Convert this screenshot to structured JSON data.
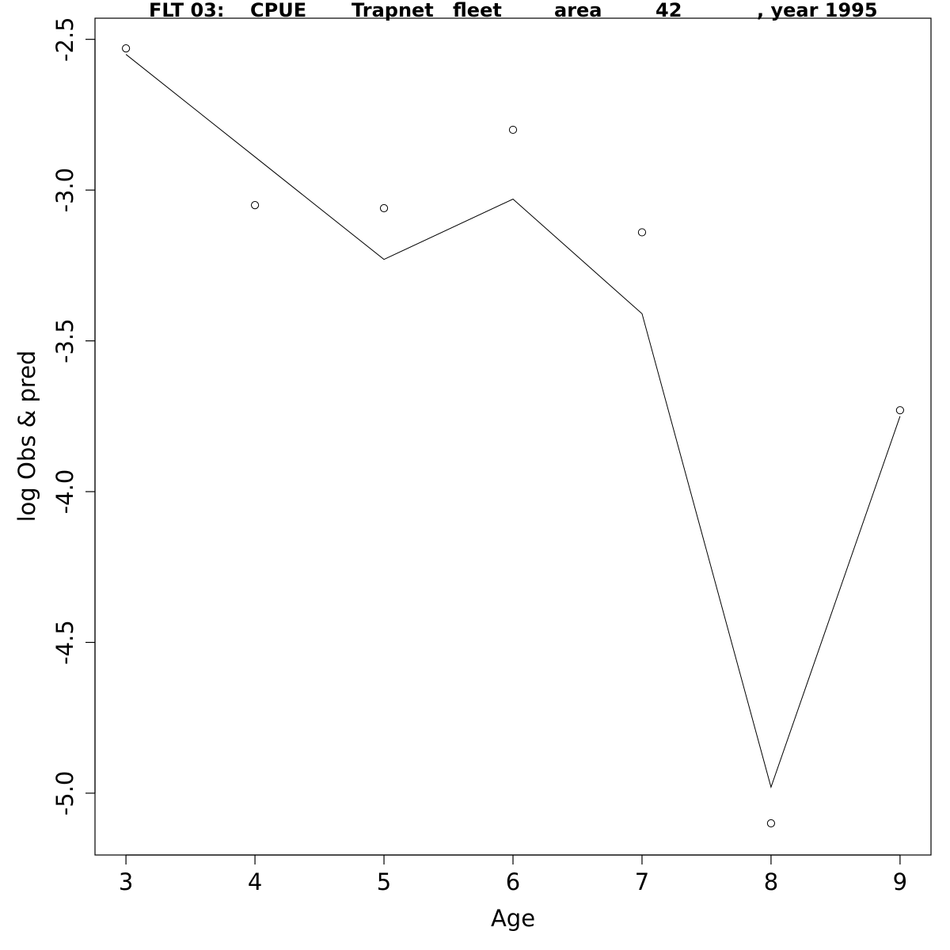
{
  "chart_data": {
    "type": "line",
    "title_parts": [
      "FLT 03:",
      "CPUE",
      "Trapnet",
      "fleet",
      "area",
      "42",
      ", year 1995"
    ],
    "xlabel": "Age",
    "ylabel": "log Obs & pred",
    "x": [
      3,
      4,
      5,
      6,
      7,
      8,
      9
    ],
    "series": [
      {
        "role": "observed",
        "style": "points",
        "values": [
          -2.53,
          -3.05,
          -3.06,
          -2.8,
          -3.14,
          -5.1,
          -3.73
        ]
      },
      {
        "role": "predicted",
        "style": "line",
        "values": [
          -2.55,
          -2.89,
          -3.23,
          -3.03,
          -3.41,
          -4.98,
          -3.75
        ]
      }
    ],
    "xlim": [
      2.76,
      9.24
    ],
    "ylim": [
      -5.205,
      -2.43
    ],
    "xticks": [
      3,
      4,
      5,
      6,
      7,
      8,
      9
    ],
    "yticks": [
      -2.5,
      -3.0,
      -3.5,
      -4.0,
      -4.5,
      -5.0
    ],
    "ytick_labels": [
      "-2.5",
      "-3.0",
      "-3.5",
      "-4.0",
      "-4.5",
      "-5.0"
    ],
    "grid": false,
    "legend": "none"
  }
}
